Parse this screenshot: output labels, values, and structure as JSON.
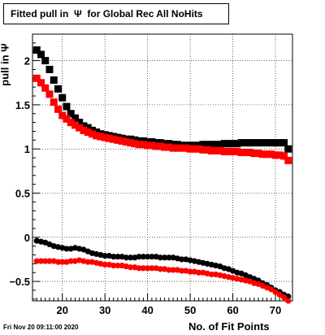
{
  "title": "Fitted pull in  Ψ  for Global Rec All NoHits",
  "timestamp": "Fri Nov 20 09:11:00 2020",
  "chart_data": {
    "type": "scatter",
    "title": "Fitted pull in  Ψ  for Global Rec All NoHits",
    "xlabel": "No. of Fit Points",
    "ylabel": "pull in  Ψ",
    "xlim": [
      13,
      74
    ],
    "ylim": [
      -0.72,
      2.3
    ],
    "xticks": [
      20,
      30,
      40,
      50,
      60,
      70
    ],
    "yticks": [
      -0.5,
      0,
      0.5,
      1,
      1.5,
      2
    ],
    "ytick_labels": [
      "−0.5",
      "0",
      "0.5",
      "1",
      "1.5",
      "2"
    ],
    "grid": true,
    "series": [
      {
        "marker": "square",
        "color": "#000000",
        "x": [
          14,
          15,
          16,
          17,
          18,
          19,
          20,
          21,
          22,
          23,
          24,
          25,
          26,
          27,
          28,
          29,
          30,
          31,
          32,
          33,
          34,
          35,
          36,
          37,
          38,
          39,
          40,
          41,
          42,
          43,
          44,
          45,
          46,
          47,
          48,
          49,
          50,
          51,
          52,
          53,
          54,
          55,
          56,
          57,
          58,
          59,
          60,
          61,
          62,
          63,
          64,
          65,
          66,
          67,
          68,
          69,
          70,
          71,
          72,
          73
        ],
        "y": [
          2.12,
          2.07,
          2.0,
          1.9,
          1.78,
          1.68,
          1.58,
          1.48,
          1.4,
          1.35,
          1.3,
          1.26,
          1.24,
          1.21,
          1.19,
          1.17,
          1.16,
          1.15,
          1.14,
          1.13,
          1.12,
          1.11,
          1.11,
          1.1,
          1.09,
          1.09,
          1.08,
          1.08,
          1.07,
          1.07,
          1.06,
          1.06,
          1.05,
          1.05,
          1.04,
          1.04,
          1.04,
          1.04,
          1.04,
          1.05,
          1.05,
          1.05,
          1.05,
          1.05,
          1.06,
          1.06,
          1.06,
          1.06,
          1.07,
          1.07,
          1.07,
          1.07,
          1.07,
          1.07,
          1.07,
          1.07,
          1.07,
          1.07,
          1.07,
          1.0
        ]
      },
      {
        "marker": "square",
        "color": "#ff0000",
        "x": [
          14,
          15,
          16,
          17,
          18,
          19,
          20,
          21,
          22,
          23,
          24,
          25,
          26,
          27,
          28,
          29,
          30,
          31,
          32,
          33,
          34,
          35,
          36,
          37,
          38,
          39,
          40,
          41,
          42,
          43,
          44,
          45,
          46,
          47,
          48,
          49,
          50,
          51,
          52,
          53,
          54,
          55,
          56,
          57,
          58,
          59,
          60,
          61,
          62,
          63,
          64,
          65,
          66,
          67,
          68,
          69,
          70,
          71,
          72,
          73
        ],
        "y": [
          1.8,
          1.75,
          1.69,
          1.62,
          1.53,
          1.45,
          1.38,
          1.34,
          1.3,
          1.27,
          1.24,
          1.21,
          1.19,
          1.17,
          1.15,
          1.14,
          1.13,
          1.12,
          1.11,
          1.1,
          1.09,
          1.08,
          1.07,
          1.06,
          1.05,
          1.05,
          1.04,
          1.04,
          1.03,
          1.03,
          1.02,
          1.02,
          1.01,
          1.01,
          1.01,
          1.01,
          1.0,
          1.0,
          1.0,
          0.99,
          0.99,
          0.98,
          0.98,
          0.98,
          0.97,
          0.97,
          0.97,
          0.97,
          0.96,
          0.96,
          0.96,
          0.95,
          0.95,
          0.94,
          0.94,
          0.94,
          0.93,
          0.93,
          0.92,
          0.87
        ]
      },
      {
        "marker": "circle",
        "color": "#000000",
        "x": [
          14,
          15,
          16,
          17,
          18,
          19,
          20,
          21,
          22,
          23,
          24,
          25,
          26,
          27,
          28,
          29,
          30,
          31,
          32,
          33,
          34,
          35,
          36,
          37,
          38,
          39,
          40,
          41,
          42,
          43,
          44,
          45,
          46,
          47,
          48,
          49,
          50,
          51,
          52,
          53,
          54,
          55,
          56,
          57,
          58,
          59,
          60,
          61,
          62,
          63,
          64,
          65,
          66,
          67,
          68,
          69,
          70,
          71,
          72,
          73
        ],
        "y": [
          -0.04,
          -0.05,
          -0.06,
          -0.08,
          -0.1,
          -0.11,
          -0.12,
          -0.13,
          -0.13,
          -0.12,
          -0.13,
          -0.14,
          -0.16,
          -0.18,
          -0.19,
          -0.2,
          -0.21,
          -0.21,
          -0.22,
          -0.22,
          -0.22,
          -0.23,
          -0.23,
          -0.23,
          -0.22,
          -0.22,
          -0.22,
          -0.22,
          -0.22,
          -0.23,
          -0.23,
          -0.23,
          -0.23,
          -0.24,
          -0.25,
          -0.25,
          -0.26,
          -0.27,
          -0.28,
          -0.29,
          -0.3,
          -0.31,
          -0.32,
          -0.33,
          -0.35,
          -0.36,
          -0.38,
          -0.4,
          -0.41,
          -0.43,
          -0.45,
          -0.47,
          -0.49,
          -0.52,
          -0.54,
          -0.57,
          -0.6,
          -0.62,
          -0.65,
          -0.67
        ]
      },
      {
        "marker": "circle",
        "color": "#ff0000",
        "x": [
          14,
          15,
          16,
          17,
          18,
          19,
          20,
          21,
          22,
          23,
          24,
          25,
          26,
          27,
          28,
          29,
          30,
          31,
          32,
          33,
          34,
          35,
          36,
          37,
          38,
          39,
          40,
          41,
          42,
          43,
          44,
          45,
          46,
          47,
          48,
          49,
          50,
          51,
          52,
          53,
          54,
          55,
          56,
          57,
          58,
          59,
          60,
          61,
          62,
          63,
          64,
          65,
          66,
          67,
          68,
          69,
          70,
          71,
          72,
          73
        ],
        "y": [
          -0.27,
          -0.27,
          -0.27,
          -0.27,
          -0.27,
          -0.28,
          -0.28,
          -0.28,
          -0.27,
          -0.27,
          -0.26,
          -0.27,
          -0.28,
          -0.28,
          -0.29,
          -0.3,
          -0.31,
          -0.31,
          -0.32,
          -0.32,
          -0.32,
          -0.33,
          -0.34,
          -0.34,
          -0.35,
          -0.35,
          -0.35,
          -0.35,
          -0.35,
          -0.36,
          -0.36,
          -0.37,
          -0.37,
          -0.37,
          -0.38,
          -0.38,
          -0.39,
          -0.39,
          -0.4,
          -0.4,
          -0.41,
          -0.42,
          -0.42,
          -0.43,
          -0.44,
          -0.45,
          -0.46,
          -0.47,
          -0.48,
          -0.49,
          -0.5,
          -0.52,
          -0.53,
          -0.55,
          -0.57,
          -0.59,
          -0.62,
          -0.65,
          -0.68,
          -0.72
        ]
      }
    ]
  }
}
